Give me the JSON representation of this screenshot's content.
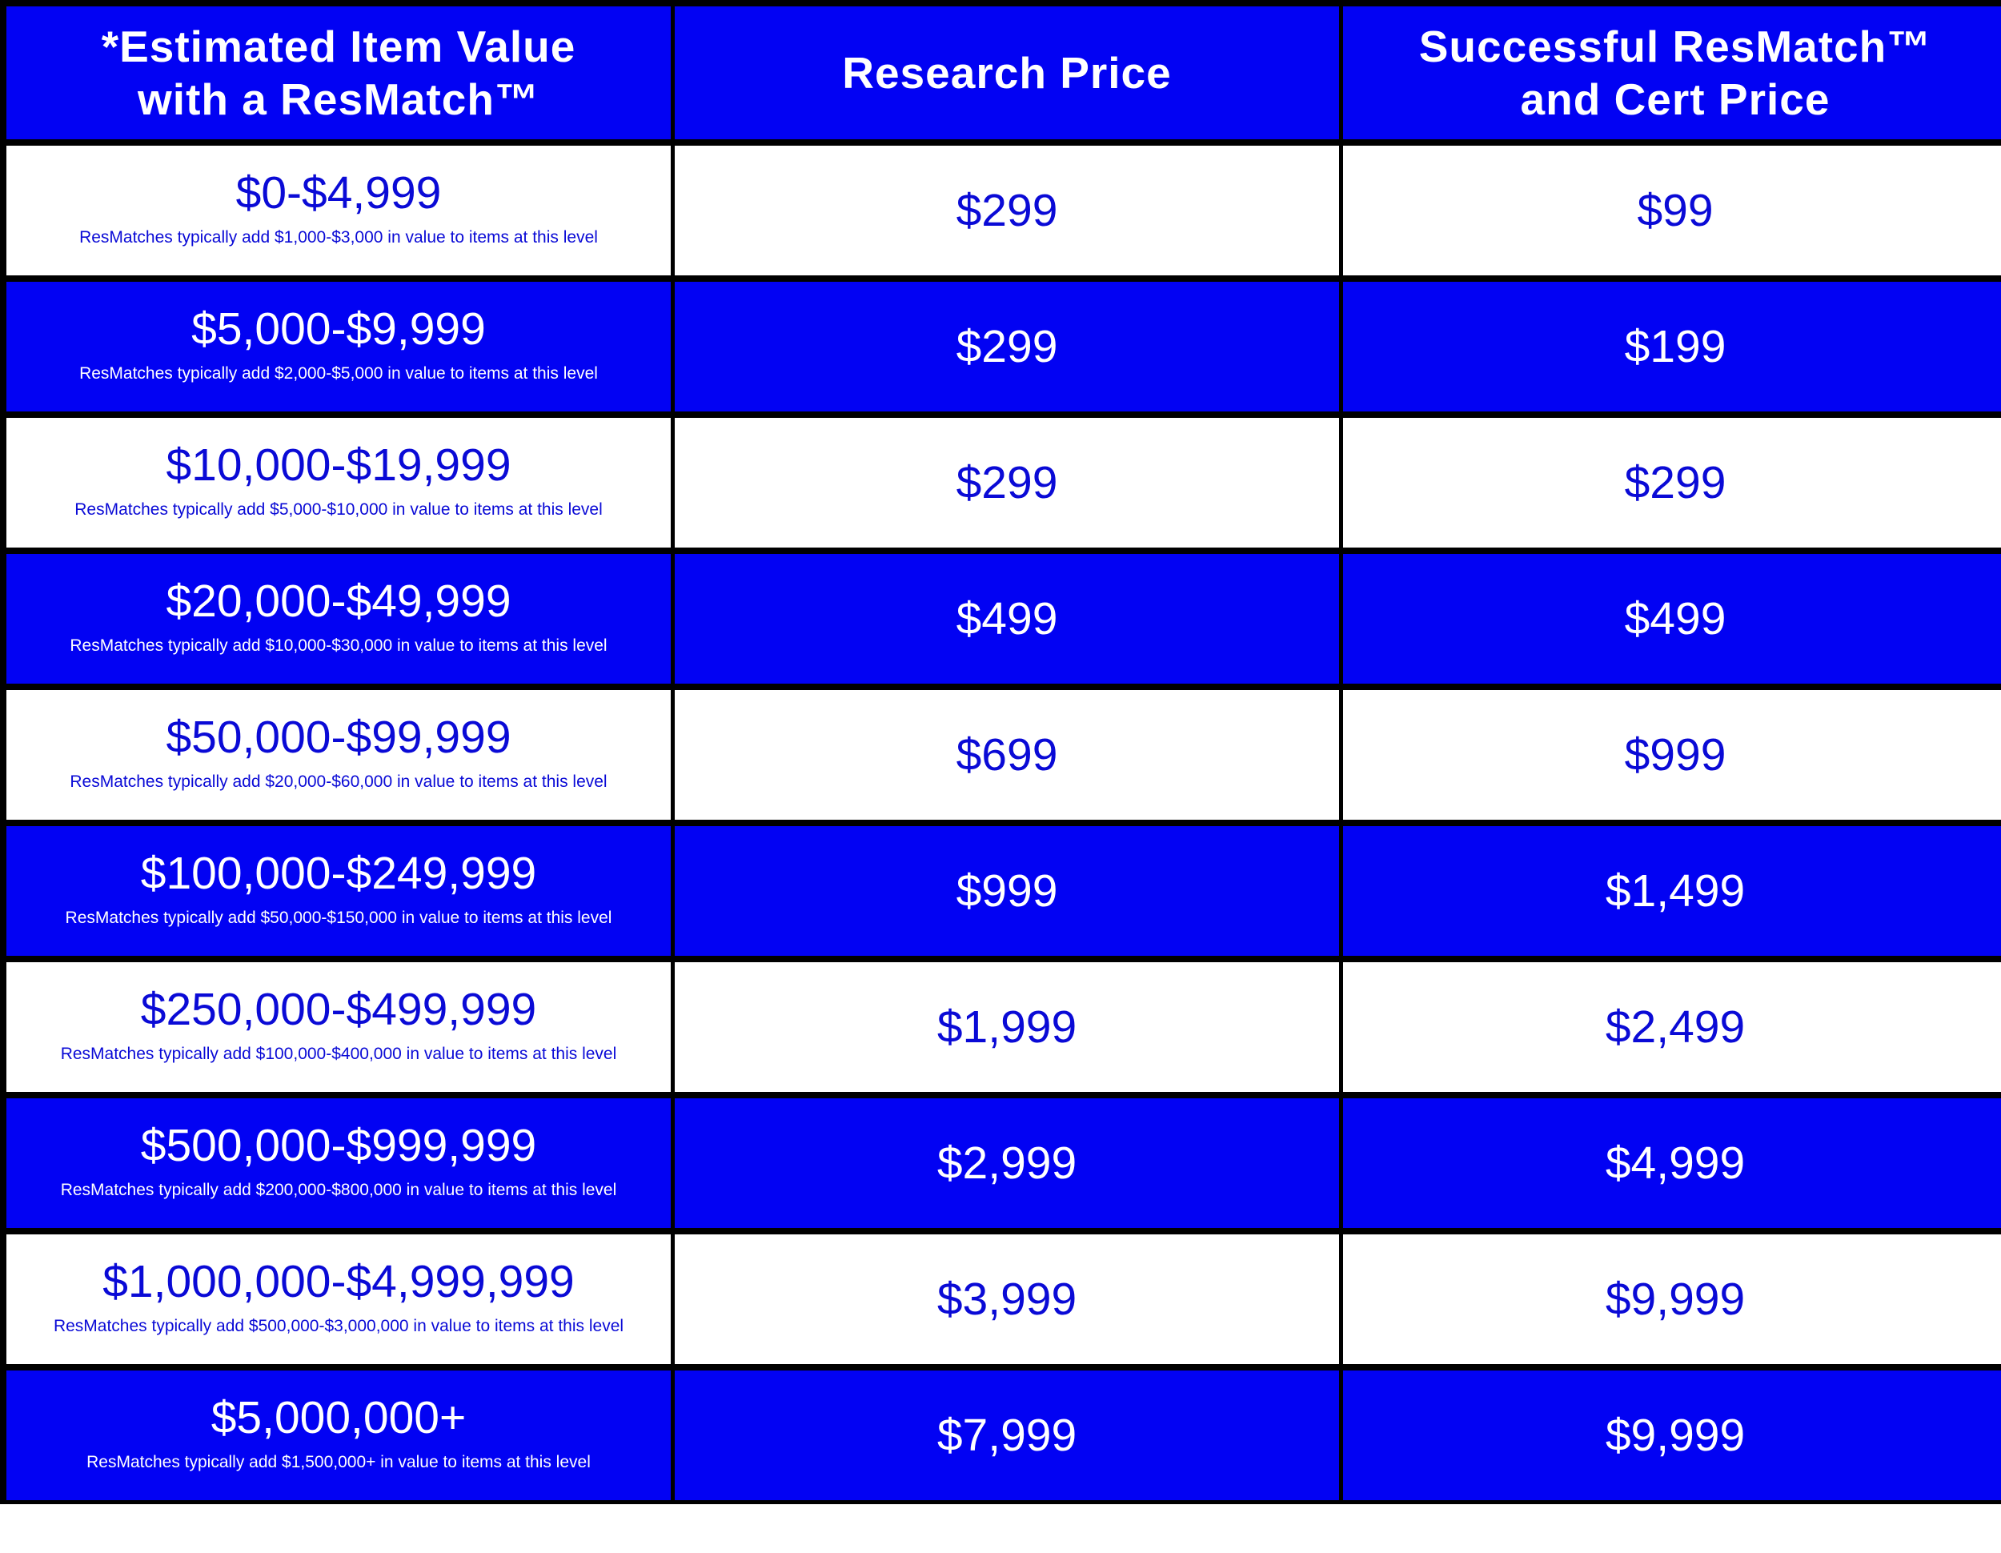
{
  "headers": {
    "col1": "*Estimated Item Value\nwith a ResMatch™",
    "col2": "Research Price",
    "col3": "Successful ResMatch™\nand Cert Price"
  },
  "rows": [
    {
      "range": "$0-$4,999",
      "note": "ResMatches typically add $1,000-$3,000 in value to items at this level",
      "research_price": "$299",
      "cert_price": "$99"
    },
    {
      "range": "$5,000-$9,999",
      "note": "ResMatches typically add $2,000-$5,000 in value to items at this level",
      "research_price": "$299",
      "cert_price": "$199"
    },
    {
      "range": "$10,000-$19,999",
      "note": "ResMatches typically add $5,000-$10,000 in value to items at this level",
      "research_price": "$299",
      "cert_price": "$299"
    },
    {
      "range": "$20,000-$49,999",
      "note": "ResMatches typically add $10,000-$30,000 in value to items at this level",
      "research_price": "$499",
      "cert_price": "$499"
    },
    {
      "range": "$50,000-$99,999",
      "note": "ResMatches typically add $20,000-$60,000 in value to items at this level",
      "research_price": "$699",
      "cert_price": "$999"
    },
    {
      "range": "$100,000-$249,999",
      "note": "ResMatches typically add $50,000-$150,000 in value to items at this level",
      "research_price": "$999",
      "cert_price": "$1,499"
    },
    {
      "range": "$250,000-$499,999",
      "note": "ResMatches typically add $100,000-$400,000 in value to items at this level",
      "research_price": "$1,999",
      "cert_price": "$2,499"
    },
    {
      "range": "$500,000-$999,999",
      "note": "ResMatches typically add $200,000-$800,000 in value to items at this level",
      "research_price": "$2,999",
      "cert_price": "$4,999"
    },
    {
      "range": "$1,000,000-$4,999,999",
      "note": "ResMatches typically add $500,000-$3,000,000 in value to items at this level",
      "research_price": "$3,999",
      "cert_price": "$9,999"
    },
    {
      "range": "$5,000,000+",
      "note": "ResMatches typically add $1,500,000+ in value to items at this level",
      "research_price": "$7,999",
      "cert_price": "$9,999"
    }
  ],
  "colors": {
    "blue": "#0202f3",
    "white": "#ffffff",
    "border": "#000000",
    "text_blue": "#0a0ad6"
  }
}
